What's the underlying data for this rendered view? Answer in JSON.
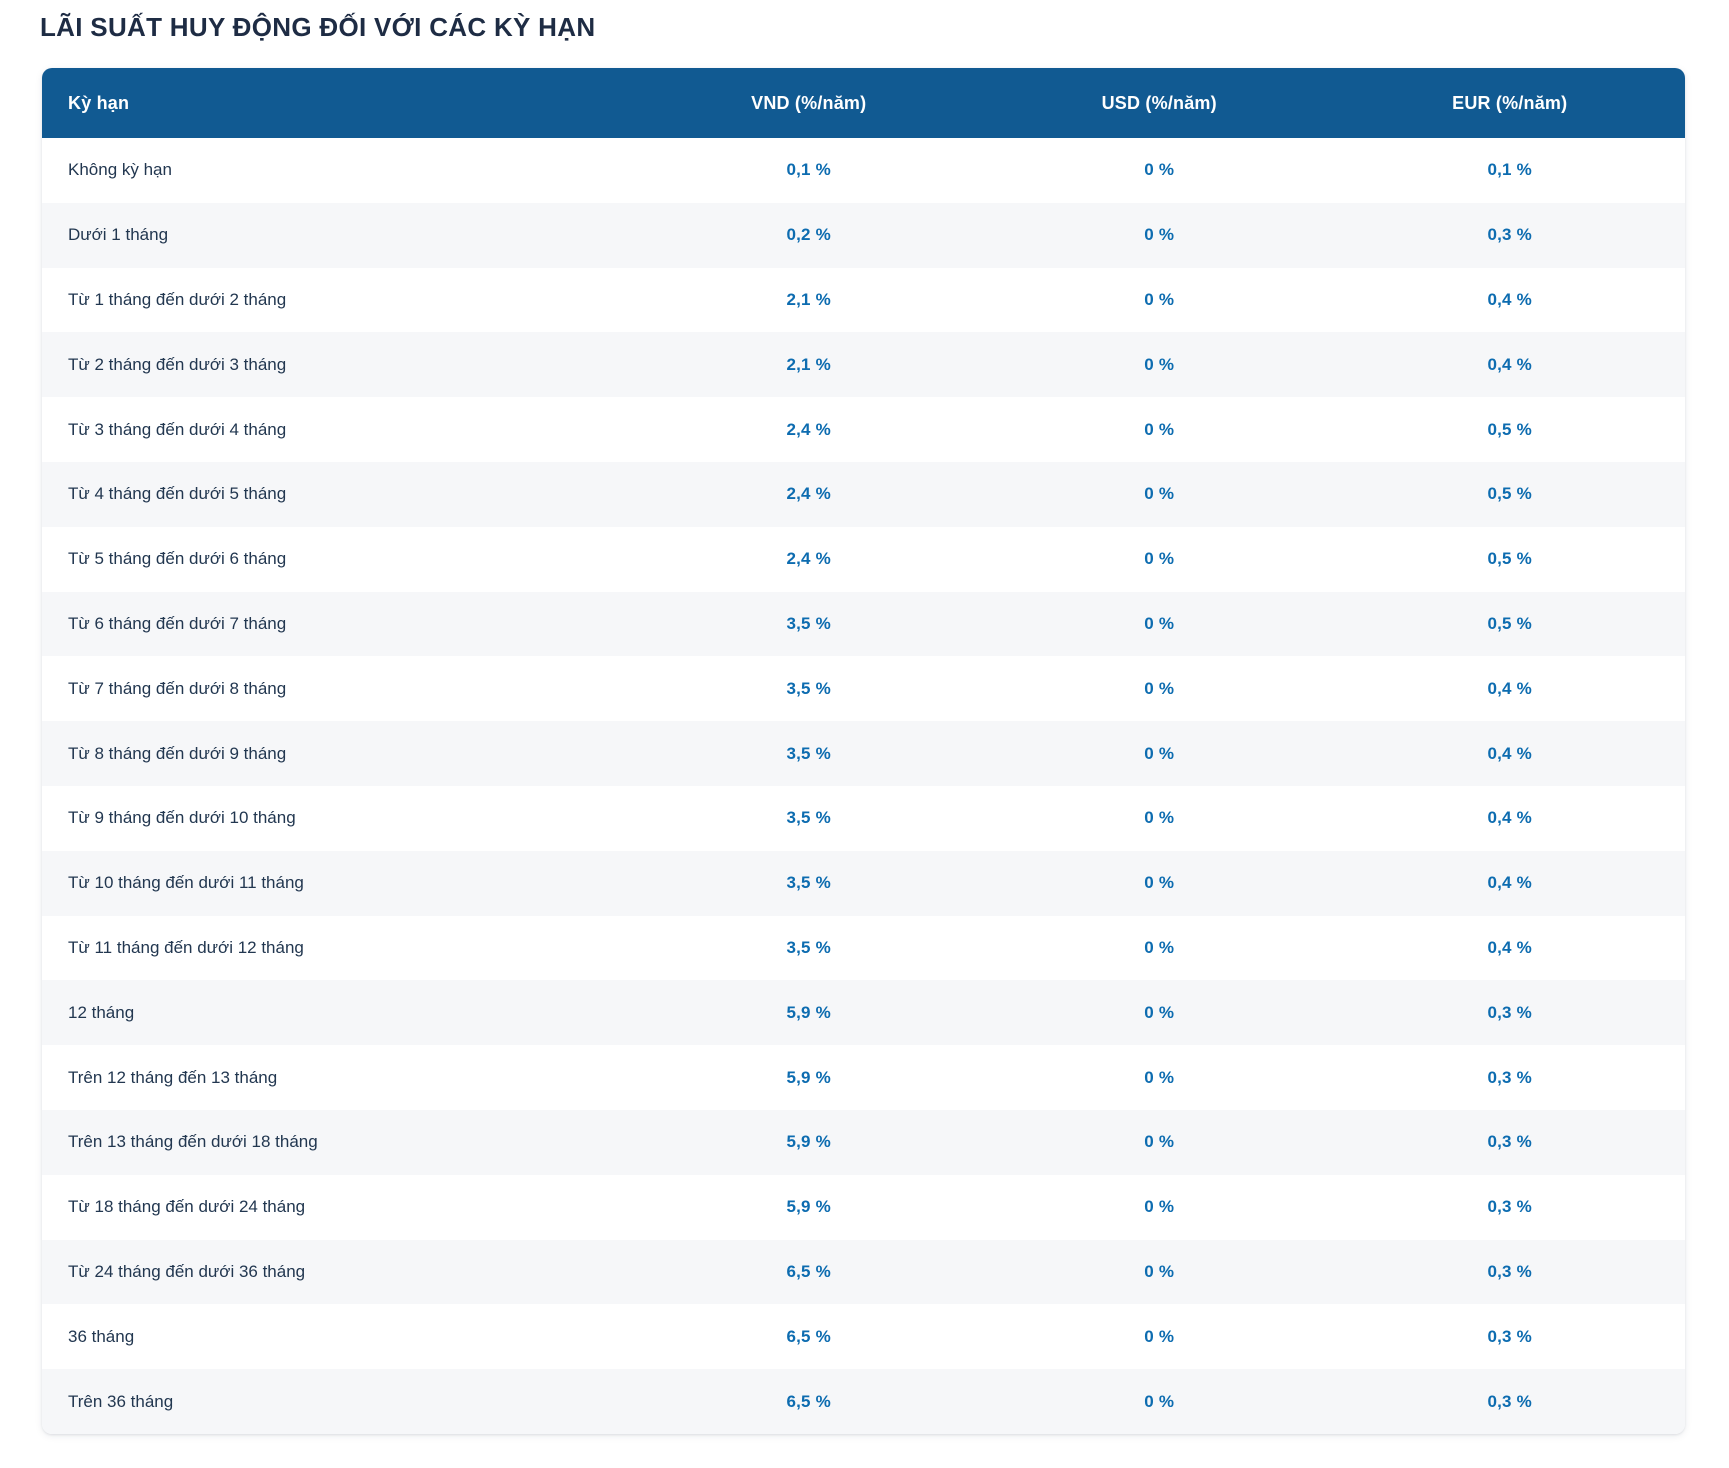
{
  "page": {
    "title": "LÃI SUẤT HUY ĐỘNG ĐỐI VỚI CÁC KỲ HẠN"
  },
  "colors": {
    "header_bg": "#115a92",
    "header_text": "#ffffff",
    "title_text": "#1e2c44",
    "label_text": "#223750",
    "value_text": "#0d6cb0",
    "row_alt_bg": "#f6f7f9"
  },
  "table": {
    "headers": [
      "Kỳ hạn",
      "VND (%/năm)",
      "USD (%/năm)",
      "EUR (%/năm)"
    ],
    "rows": [
      {
        "term": "Không kỳ hạn",
        "vnd": "0,1 %",
        "usd": "0 %",
        "eur": "0,1 %"
      },
      {
        "term": "Dưới 1 tháng",
        "vnd": "0,2 %",
        "usd": "0 %",
        "eur": "0,3 %"
      },
      {
        "term": "Từ 1 tháng đến dưới 2 tháng",
        "vnd": "2,1 %",
        "usd": "0 %",
        "eur": "0,4 %"
      },
      {
        "term": "Từ 2 tháng đến dưới 3 tháng",
        "vnd": "2,1 %",
        "usd": "0 %",
        "eur": "0,4 %"
      },
      {
        "term": "Từ 3 tháng đến dưới 4 tháng",
        "vnd": "2,4 %",
        "usd": "0 %",
        "eur": "0,5 %"
      },
      {
        "term": "Từ 4 tháng đến dưới 5 tháng",
        "vnd": "2,4 %",
        "usd": "0 %",
        "eur": "0,5 %"
      },
      {
        "term": "Từ 5 tháng đến dưới 6 tháng",
        "vnd": "2,4 %",
        "usd": "0 %",
        "eur": "0,5 %"
      },
      {
        "term": "Từ 6 tháng đến dưới 7 tháng",
        "vnd": "3,5 %",
        "usd": "0 %",
        "eur": "0,5 %"
      },
      {
        "term": "Từ 7 tháng đến dưới 8 tháng",
        "vnd": "3,5 %",
        "usd": "0 %",
        "eur": "0,4 %"
      },
      {
        "term": "Từ 8 tháng đến dưới 9 tháng",
        "vnd": "3,5 %",
        "usd": "0 %",
        "eur": "0,4 %"
      },
      {
        "term": "Từ 9 tháng đến dưới 10 tháng",
        "vnd": "3,5 %",
        "usd": "0 %",
        "eur": "0,4 %"
      },
      {
        "term": "Từ 10 tháng đến dưới 11 tháng",
        "vnd": "3,5 %",
        "usd": "0 %",
        "eur": "0,4 %"
      },
      {
        "term": "Từ 11 tháng đến dưới 12 tháng",
        "vnd": "3,5 %",
        "usd": "0 %",
        "eur": "0,4 %"
      },
      {
        "term": "12 tháng",
        "vnd": "5,9 %",
        "usd": "0 %",
        "eur": "0,3 %"
      },
      {
        "term": "Trên 12 tháng đến 13 tháng",
        "vnd": "5,9 %",
        "usd": "0 %",
        "eur": "0,3 %"
      },
      {
        "term": "Trên 13 tháng đến dưới 18 tháng",
        "vnd": "5,9 %",
        "usd": "0 %",
        "eur": "0,3 %"
      },
      {
        "term": "Từ 18 tháng đến dưới 24 tháng",
        "vnd": "5,9 %",
        "usd": "0 %",
        "eur": "0,3 %"
      },
      {
        "term": "Từ 24 tháng đến dưới 36 tháng",
        "vnd": "6,5 %",
        "usd": "0 %",
        "eur": "0,3 %"
      },
      {
        "term": "36 tháng",
        "vnd": "6,5 %",
        "usd": "0 %",
        "eur": "0,3 %"
      },
      {
        "term": "Trên 36 tháng",
        "vnd": "6,5 %",
        "usd": "0 %",
        "eur": "0,3 %"
      }
    ]
  }
}
